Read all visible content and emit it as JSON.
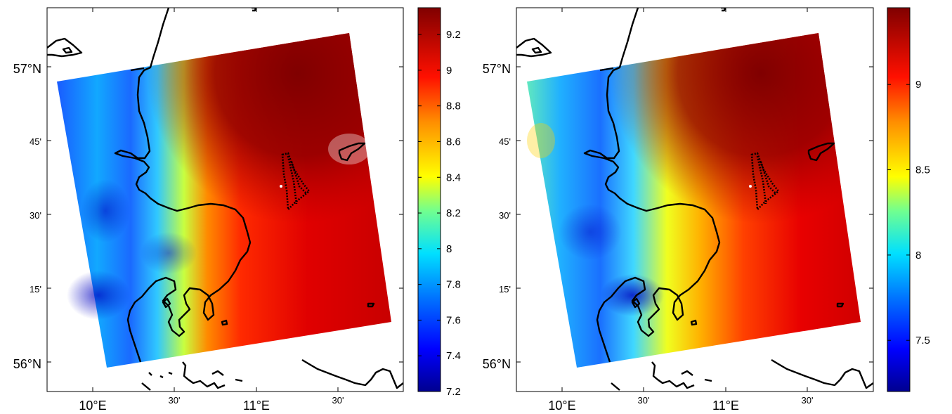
{
  "panels": [
    {
      "id": "left",
      "lat_ticks": [
        "56°N",
        "15'",
        "30'",
        "45'",
        "57°N"
      ],
      "lon_ticks": [
        "10°E",
        "30'",
        "11°E",
        "30'"
      ],
      "colorbar": {
        "min": 7.2,
        "max": 9.35,
        "ticks": [
          "7.2",
          "7.4",
          "7.6",
          "7.8",
          "8",
          "8.2",
          "8.4",
          "8.6",
          "8.8",
          "9",
          "9.2"
        ],
        "tick_values": [
          7.2,
          7.4,
          7.6,
          7.8,
          8.0,
          8.2,
          8.4,
          8.6,
          8.8,
          9.0,
          9.2
        ]
      }
    },
    {
      "id": "right",
      "lat_ticks": [
        "56°N",
        "15'",
        "30'",
        "45'",
        "57°N"
      ],
      "lon_ticks": [
        "10°E",
        "30'",
        "11°E",
        "30'"
      ],
      "colorbar": {
        "min": 7.2,
        "max": 9.45,
        "ticks": [
          "7.5",
          "8",
          "8.5",
          "9"
        ],
        "tick_values": [
          7.5,
          8.0,
          8.5,
          9.0
        ]
      }
    }
  ],
  "colors": {
    "colormap": [
      "#00008f",
      "#0000ff",
      "#0080ff",
      "#00ffff",
      "#80ff80",
      "#ffff00",
      "#ff8000",
      "#ff0000",
      "#800000"
    ],
    "coastline": "#000000"
  }
}
